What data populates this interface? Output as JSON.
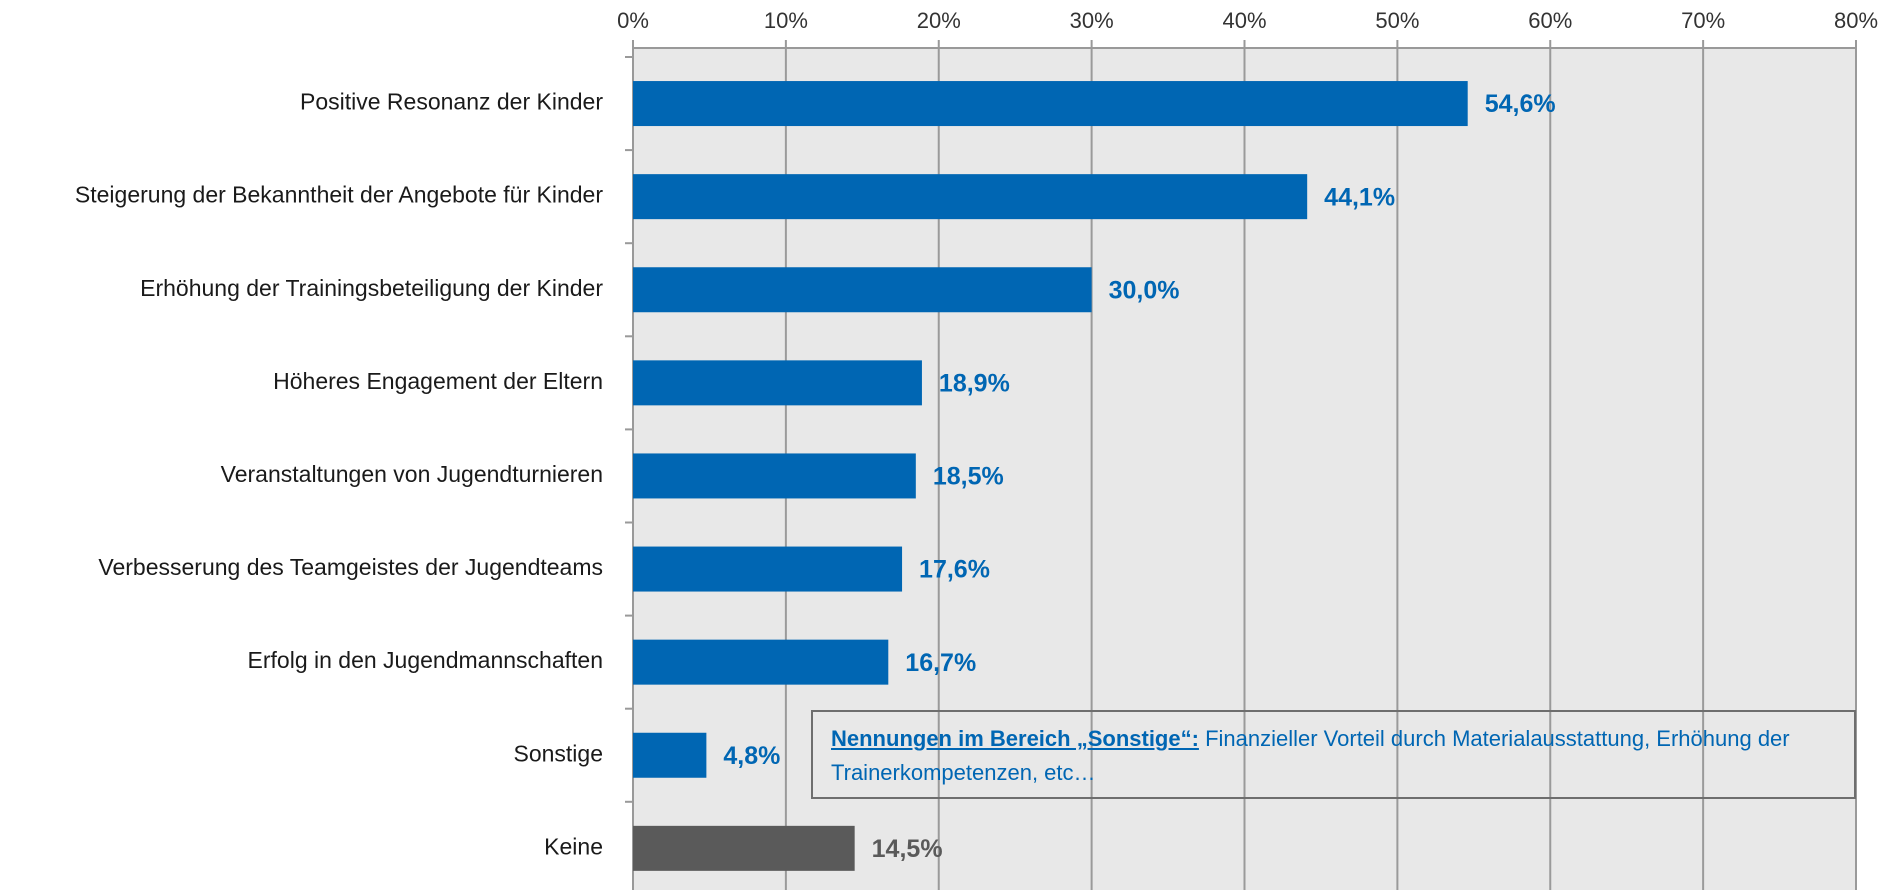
{
  "chart_data": {
    "type": "bar",
    "orientation": "horizontal",
    "categories": [
      "Positive Resonanz der Kinder",
      "Steigerung der Bekanntheit der Angebote für Kinder",
      "Erhöhung der Trainingsbeteiligung der Kinder",
      "Höheres Engagement der Eltern",
      "Veranstaltungen von Jugendturnieren",
      "Verbesserung des Teamgeistes der Jugendteams",
      "Erfolg in den Jugendmannschaften",
      "Sonstige",
      "Keine"
    ],
    "values": [
      54.6,
      44.1,
      30.0,
      18.9,
      18.5,
      17.6,
      16.7,
      4.8,
      14.5
    ],
    "value_labels": [
      "54,6%",
      "44,1%",
      "30,0%",
      "18,9%",
      "18,5%",
      "17,6%",
      "16,7%",
      "4,8%",
      "14,5%"
    ],
    "colors": [
      "#0066b3",
      "#0066b3",
      "#0066b3",
      "#0066b3",
      "#0066b3",
      "#0066b3",
      "#0066b3",
      "#0066b3",
      "#5a5a5a"
    ],
    "xlim": [
      0,
      80
    ],
    "xticks": [
      {
        "value": 0,
        "label": "0%"
      },
      {
        "value": 10,
        "label": "10%"
      },
      {
        "value": 20,
        "label": "20%"
      },
      {
        "value": 30,
        "label": "30%"
      },
      {
        "value": 40,
        "label": "40%"
      },
      {
        "value": 50,
        "label": "50%"
      },
      {
        "value": 60,
        "label": "60%"
      },
      {
        "value": 70,
        "label": "70%"
      },
      {
        "value": 80,
        "label": "80%"
      }
    ],
    "grid": true,
    "annotation": {
      "heading": "Nennungen im Bereich „Sonstige“:",
      "text": "Finanzieller Vorteil durch Materialausstattung, Erhöhung der Trainerkompetenzen, etc…"
    }
  }
}
